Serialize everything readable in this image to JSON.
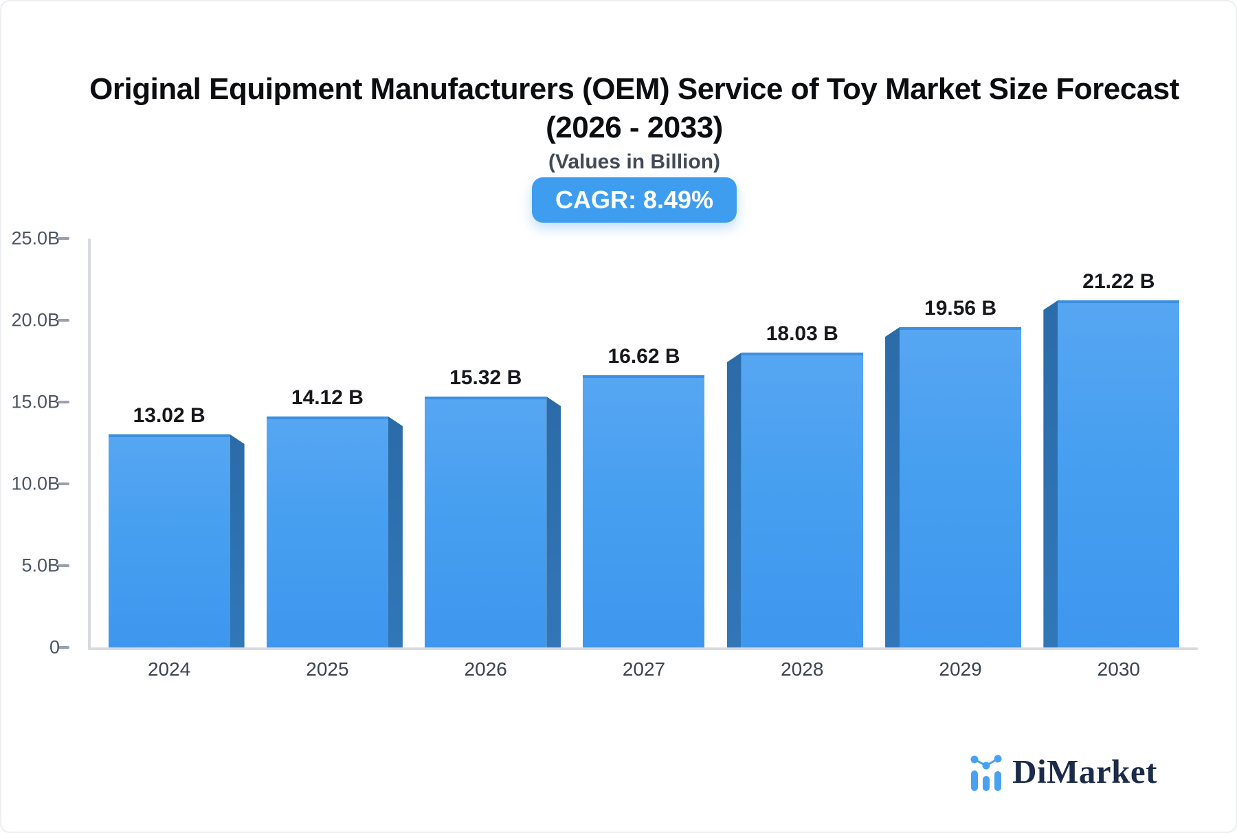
{
  "header": {
    "title_line1": "Original Equipment Manufacturers (OEM) Service of Toy Market Size Forecast",
    "title_line2": "(2026 - 2033)",
    "subtitle": "(Values in Billion)",
    "badge_label": "CAGR: 8.49%"
  },
  "colors": {
    "bar_face_top": "#56a6f2",
    "bar_face_bottom": "#3e97ee",
    "bar_side": "#2f73b3",
    "badge_background": "#3f9df0",
    "axis_line": "#d7dadf",
    "logo_icon_blue": "#4aa1f1",
    "logo_text_navy": "#1c2b4a"
  },
  "chart_data": {
    "type": "bar",
    "title": "Original Equipment Manufacturers (OEM) Service of Toy Market Size Forecast (2026 - 2033)",
    "subtitle": "(Values in Billion)",
    "annotation": "CAGR: 8.49%",
    "categories": [
      "2024",
      "2025",
      "2026",
      "2027",
      "2028",
      "2029",
      "2030"
    ],
    "values": [
      13.02,
      14.12,
      15.32,
      16.62,
      18.03,
      19.56,
      21.22
    ],
    "value_labels": [
      "13.02 B",
      "14.12 B",
      "15.32 B",
      "16.62 B",
      "18.03 B",
      "19.56 B",
      "21.22 B"
    ],
    "xlabel": "",
    "ylabel": "",
    "ylim": [
      0,
      25
    ],
    "yticks": {
      "values": [
        0,
        5,
        10,
        15,
        20,
        25
      ],
      "labels": [
        "0",
        "5.0B",
        "10.0B",
        "15.0B",
        "20.0B",
        "25.0B"
      ]
    },
    "grid": false,
    "legend": null,
    "bar_style": "3d-perspective-center"
  },
  "logo": {
    "text": "DiMarket"
  }
}
